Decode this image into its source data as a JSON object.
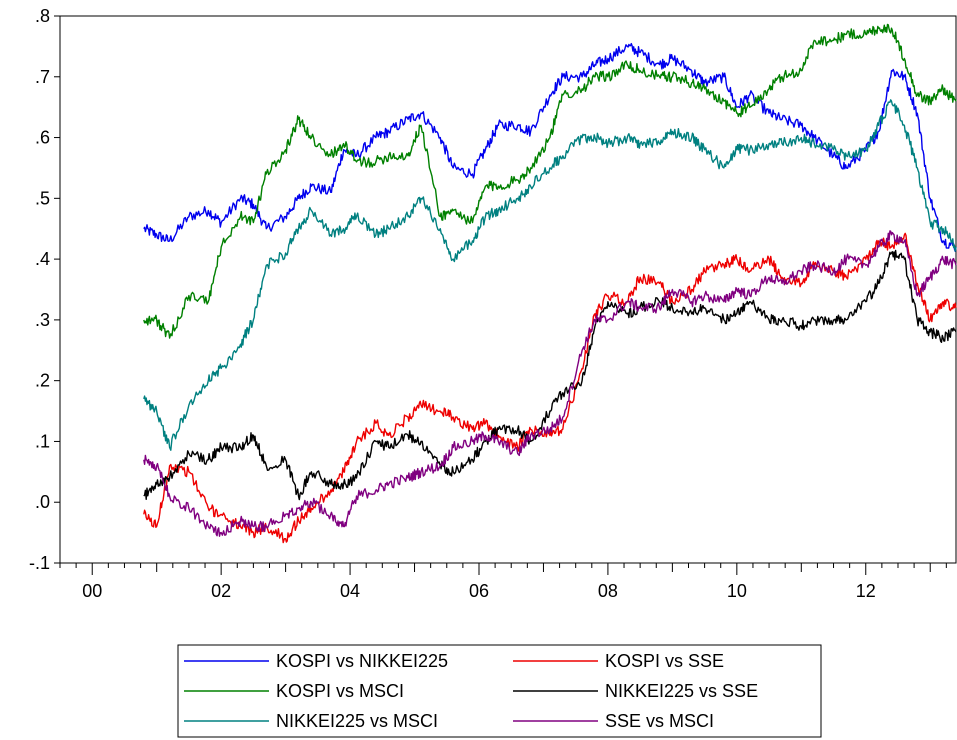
{
  "chart_data": {
    "type": "line",
    "title": "",
    "xlabel": "",
    "ylabel": "",
    "xlim": [
      1999.5,
      2013.4
    ],
    "ylim": [
      -0.1,
      0.8
    ],
    "x_ticks": [
      2000,
      2002,
      2004,
      2006,
      2008,
      2010,
      2012
    ],
    "x_tick_labels": [
      "00",
      "02",
      "04",
      "06",
      "08",
      "10",
      "12"
    ],
    "y_ticks": [
      -0.1,
      0.0,
      0.1,
      0.2,
      0.3,
      0.4,
      0.5,
      0.6,
      0.7,
      0.8
    ],
    "y_tick_labels": [
      "-.1",
      ".0",
      ".1",
      ".2",
      ".3",
      ".4",
      ".5",
      ".6",
      ".7",
      ".8"
    ],
    "grid": false,
    "legend_position": "bottom",
    "series": [
      {
        "name": "KOSPI vs NIKKEI225",
        "color": "#0000ee",
        "x": [
          2000.8,
          2001.0,
          2001.2,
          2001.5,
          2001.8,
          2002.0,
          2002.3,
          2002.5,
          2002.7,
          2003.0,
          2003.2,
          2003.4,
          2003.7,
          2003.9,
          2004.1,
          2004.4,
          2004.6,
          2004.9,
          2005.1,
          2005.4,
          2005.6,
          2005.9,
          2006.1,
          2006.3,
          2006.6,
          2006.8,
          2007.1,
          2007.3,
          2007.6,
          2007.8,
          2008.0,
          2008.3,
          2008.5,
          2008.8,
          2009.0,
          2009.3,
          2009.5,
          2009.8,
          2010.0,
          2010.2,
          2010.5,
          2010.7,
          2011.0,
          2011.2,
          2011.5,
          2011.7,
          2012.0,
          2012.2,
          2012.4,
          2012.6,
          2012.8,
          2013.0,
          2013.2,
          2013.4
        ],
        "values": [
          0.45,
          0.44,
          0.43,
          0.47,
          0.48,
          0.46,
          0.5,
          0.49,
          0.45,
          0.47,
          0.5,
          0.52,
          0.51,
          0.58,
          0.57,
          0.6,
          0.61,
          0.63,
          0.64,
          0.6,
          0.55,
          0.54,
          0.58,
          0.62,
          0.62,
          0.61,
          0.67,
          0.7,
          0.7,
          0.72,
          0.73,
          0.75,
          0.74,
          0.72,
          0.73,
          0.71,
          0.69,
          0.7,
          0.65,
          0.67,
          0.64,
          0.63,
          0.62,
          0.6,
          0.57,
          0.55,
          0.58,
          0.61,
          0.71,
          0.7,
          0.64,
          0.5,
          0.43,
          0.42
        ]
      },
      {
        "name": "KOSPI vs SSE",
        "color": "#ee0000",
        "x": [
          2000.8,
          2001.0,
          2001.2,
          2001.5,
          2001.8,
          2002.0,
          2002.3,
          2002.5,
          2002.7,
          2003.0,
          2003.2,
          2003.4,
          2003.7,
          2003.9,
          2004.1,
          2004.4,
          2004.6,
          2004.9,
          2005.1,
          2005.4,
          2005.6,
          2005.9,
          2006.1,
          2006.3,
          2006.6,
          2006.8,
          2007.1,
          2007.3,
          2007.6,
          2007.8,
          2008.0,
          2008.3,
          2008.5,
          2008.8,
          2009.0,
          2009.3,
          2009.5,
          2009.8,
          2010.0,
          2010.2,
          2010.5,
          2010.7,
          2011.0,
          2011.2,
          2011.5,
          2011.7,
          2012.0,
          2012.2,
          2012.4,
          2012.6,
          2012.8,
          2013.0,
          2013.2,
          2013.4
        ],
        "values": [
          -0.02,
          -0.04,
          0.06,
          0.05,
          -0.01,
          -0.02,
          -0.04,
          -0.05,
          -0.04,
          -0.06,
          -0.03,
          -0.01,
          0.02,
          0.05,
          0.1,
          0.13,
          0.11,
          0.14,
          0.16,
          0.15,
          0.14,
          0.12,
          0.13,
          0.11,
          0.09,
          0.12,
          0.11,
          0.12,
          0.22,
          0.31,
          0.34,
          0.33,
          0.37,
          0.36,
          0.33,
          0.35,
          0.38,
          0.39,
          0.4,
          0.38,
          0.4,
          0.37,
          0.36,
          0.39,
          0.38,
          0.37,
          0.4,
          0.43,
          0.42,
          0.44,
          0.36,
          0.3,
          0.33,
          0.32
        ]
      },
      {
        "name": "KOSPI vs MSCI",
        "color": "#008000",
        "x": [
          2000.8,
          2001.0,
          2001.2,
          2001.5,
          2001.8,
          2002.0,
          2002.3,
          2002.5,
          2002.7,
          2003.0,
          2003.2,
          2003.4,
          2003.7,
          2003.9,
          2004.1,
          2004.4,
          2004.6,
          2004.9,
          2005.1,
          2005.4,
          2005.6,
          2005.9,
          2006.1,
          2006.3,
          2006.6,
          2006.8,
          2007.1,
          2007.3,
          2007.6,
          2007.8,
          2008.0,
          2008.3,
          2008.5,
          2008.8,
          2009.0,
          2009.3,
          2009.5,
          2009.8,
          2010.0,
          2010.2,
          2010.5,
          2010.7,
          2011.0,
          2011.2,
          2011.5,
          2011.7,
          2012.0,
          2012.2,
          2012.4,
          2012.6,
          2012.8,
          2013.0,
          2013.2,
          2013.4
        ],
        "values": [
          0.3,
          0.3,
          0.27,
          0.34,
          0.33,
          0.42,
          0.47,
          0.46,
          0.54,
          0.58,
          0.63,
          0.6,
          0.57,
          0.59,
          0.56,
          0.56,
          0.57,
          0.57,
          0.62,
          0.47,
          0.48,
          0.46,
          0.52,
          0.52,
          0.53,
          0.55,
          0.6,
          0.67,
          0.68,
          0.7,
          0.7,
          0.72,
          0.71,
          0.7,
          0.7,
          0.69,
          0.68,
          0.66,
          0.64,
          0.65,
          0.68,
          0.7,
          0.71,
          0.76,
          0.76,
          0.77,
          0.77,
          0.78,
          0.78,
          0.73,
          0.67,
          0.66,
          0.68,
          0.66
        ]
      },
      {
        "name": "NIKKEI225 vs SSE",
        "color": "#000000",
        "x": [
          2000.8,
          2001.0,
          2001.2,
          2001.5,
          2001.8,
          2002.0,
          2002.3,
          2002.5,
          2002.7,
          2003.0,
          2003.2,
          2003.4,
          2003.7,
          2003.9,
          2004.1,
          2004.4,
          2004.6,
          2004.9,
          2005.1,
          2005.4,
          2005.6,
          2005.9,
          2006.1,
          2006.3,
          2006.6,
          2006.8,
          2007.1,
          2007.3,
          2007.6,
          2007.8,
          2008.0,
          2008.3,
          2008.5,
          2008.8,
          2009.0,
          2009.3,
          2009.5,
          2009.8,
          2010.0,
          2010.2,
          2010.5,
          2010.7,
          2011.0,
          2011.2,
          2011.5,
          2011.7,
          2012.0,
          2012.2,
          2012.4,
          2012.6,
          2012.8,
          2013.0,
          2013.2,
          2013.4
        ],
        "values": [
          0.01,
          0.03,
          0.04,
          0.08,
          0.07,
          0.09,
          0.09,
          0.11,
          0.06,
          0.07,
          0.01,
          0.05,
          0.03,
          0.03,
          0.04,
          0.1,
          0.09,
          0.11,
          0.1,
          0.06,
          0.05,
          0.07,
          0.1,
          0.12,
          0.12,
          0.1,
          0.15,
          0.18,
          0.2,
          0.29,
          0.33,
          0.31,
          0.32,
          0.33,
          0.32,
          0.31,
          0.32,
          0.3,
          0.31,
          0.33,
          0.3,
          0.3,
          0.29,
          0.3,
          0.3,
          0.3,
          0.33,
          0.36,
          0.41,
          0.4,
          0.3,
          0.28,
          0.27,
          0.28
        ]
      },
      {
        "name": "NIKKEI225 vs MSCI",
        "color": "#008080",
        "x": [
          2000.8,
          2001.0,
          2001.2,
          2001.5,
          2001.8,
          2002.0,
          2002.3,
          2002.5,
          2002.7,
          2003.0,
          2003.2,
          2003.4,
          2003.7,
          2003.9,
          2004.1,
          2004.4,
          2004.6,
          2004.9,
          2005.1,
          2005.4,
          2005.6,
          2005.9,
          2006.1,
          2006.3,
          2006.6,
          2006.8,
          2007.1,
          2007.3,
          2007.6,
          2007.8,
          2008.0,
          2008.3,
          2008.5,
          2008.8,
          2009.0,
          2009.3,
          2009.5,
          2009.8,
          2010.0,
          2010.2,
          2010.5,
          2010.7,
          2011.0,
          2011.2,
          2011.5,
          2011.7,
          2012.0,
          2012.2,
          2012.4,
          2012.6,
          2012.8,
          2013.0,
          2013.2,
          2013.4
        ],
        "values": [
          0.17,
          0.15,
          0.09,
          0.16,
          0.2,
          0.22,
          0.26,
          0.3,
          0.39,
          0.41,
          0.45,
          0.48,
          0.44,
          0.45,
          0.47,
          0.44,
          0.45,
          0.47,
          0.5,
          0.45,
          0.4,
          0.43,
          0.47,
          0.48,
          0.5,
          0.52,
          0.55,
          0.57,
          0.6,
          0.6,
          0.59,
          0.6,
          0.59,
          0.59,
          0.61,
          0.6,
          0.58,
          0.55,
          0.58,
          0.58,
          0.59,
          0.59,
          0.6,
          0.59,
          0.58,
          0.57,
          0.58,
          0.62,
          0.66,
          0.62,
          0.55,
          0.46,
          0.45,
          0.42
        ]
      },
      {
        "name": "SSE vs MSCI",
        "color": "#800080",
        "x": [
          2000.8,
          2001.0,
          2001.2,
          2001.5,
          2001.8,
          2002.0,
          2002.3,
          2002.5,
          2002.7,
          2003.0,
          2003.2,
          2003.4,
          2003.7,
          2003.9,
          2004.1,
          2004.4,
          2004.6,
          2004.9,
          2005.1,
          2005.4,
          2005.6,
          2005.9,
          2006.1,
          2006.3,
          2006.6,
          2006.8,
          2007.1,
          2007.3,
          2007.6,
          2007.8,
          2008.0,
          2008.3,
          2008.5,
          2008.8,
          2009.0,
          2009.3,
          2009.5,
          2009.8,
          2010.0,
          2010.2,
          2010.5,
          2010.7,
          2011.0,
          2011.2,
          2011.5,
          2011.7,
          2012.0,
          2012.2,
          2012.4,
          2012.6,
          2012.8,
          2013.0,
          2013.2,
          2013.4
        ],
        "values": [
          0.07,
          0.06,
          0.01,
          -0.01,
          -0.04,
          -0.05,
          -0.03,
          -0.04,
          -0.04,
          -0.02,
          -0.01,
          0.0,
          -0.02,
          -0.04,
          0.01,
          0.02,
          0.03,
          0.04,
          0.05,
          0.06,
          0.09,
          0.1,
          0.11,
          0.1,
          0.08,
          0.11,
          0.12,
          0.14,
          0.25,
          0.3,
          0.3,
          0.33,
          0.32,
          0.32,
          0.35,
          0.33,
          0.34,
          0.33,
          0.35,
          0.34,
          0.37,
          0.36,
          0.38,
          0.39,
          0.38,
          0.4,
          0.39,
          0.42,
          0.44,
          0.43,
          0.34,
          0.37,
          0.4,
          0.39
        ]
      }
    ]
  }
}
